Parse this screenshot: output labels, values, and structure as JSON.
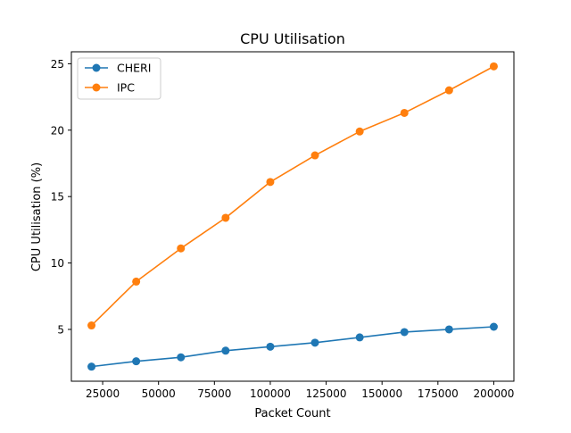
{
  "chart_data": {
    "type": "line",
    "title": "CPU Utilisation",
    "xlabel": "Packet Count",
    "ylabel": "CPU Utilisation (%)",
    "x": [
      20000,
      40000,
      60000,
      80000,
      100000,
      120000,
      140000,
      160000,
      180000,
      200000
    ],
    "xlim": [
      11000,
      209000
    ],
    "ylim": [
      1.1,
      25.9
    ],
    "xticks": [
      25000,
      50000,
      75000,
      100000,
      125000,
      150000,
      175000,
      200000
    ],
    "yticks": [
      5,
      10,
      15,
      20,
      25
    ],
    "grid": false,
    "legend_position": "upper-left",
    "series": [
      {
        "name": "CHERI",
        "color": "#1f77b4",
        "marker": "circle",
        "values": [
          2.2,
          2.6,
          2.9,
          3.4,
          3.7,
          4.0,
          4.4,
          4.8,
          5.0,
          5.2
        ]
      },
      {
        "name": "IPC",
        "color": "#ff7f0e",
        "marker": "circle",
        "values": [
          5.3,
          8.6,
          11.1,
          13.4,
          16.1,
          18.1,
          19.9,
          21.3,
          23.0,
          24.8
        ]
      }
    ]
  }
}
